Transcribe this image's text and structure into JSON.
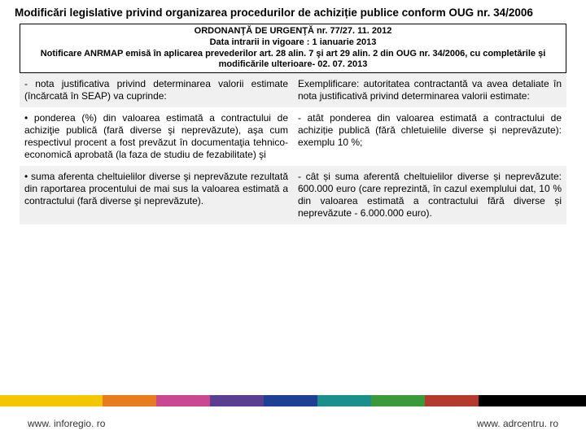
{
  "title": "Modificări legislative privind organizarea procedurilor de achiziție publice conform OUG nr. 34/2006",
  "ordonanta": {
    "line1": "ORDONANŢĂ DE URGENŢĂ nr. 77/27. 11. 2012",
    "line2": "Data intrarii in vigoare : 1 ianuarie 2013",
    "line3": "Notificare ANRMAP emisă în aplicarea prevederilor art. 28 alin. 7 şi art 29 alin. 2  din OUG nr. 34/2006, cu completările și modificările ulterioare- 02. 07. 2013"
  },
  "rows": [
    {
      "left": " - nota justificativa privind determinarea valorii estimate (încărcată în SEAP) va cuprinde:",
      "right": "Exemplificare: autoritatea contractantă va avea detaliate în nota justificativă privind determinarea valorii estimate:"
    },
    {
      "left": " •            ponderea (%) din valoarea estimată a contractului de achiziţie publică (fară diverse şi neprevăzute), aşa cum respectivul procent a fost prevăzut în documentaţia tehnico-economică aprobată (la faza de studiu de fezabilitate) şi",
      "right": " -            atât ponderea din valoarea estimată a contractului de achiziție publică (fără chletuielile diverse și neprevăzute): exemplu 10 %;"
    },
    {
      "left": " •            suma aferenta cheltuielilor diverse şi neprevăzute rezultată din raportarea procentului de mai sus la valoarea estimată a contractului (fară diverse şi neprevăzute).",
      "right": " -            cât și suma aferentă cheltuielilor diverse și neprevăzute: 600.000 euro (care reprezintă, în cazul exemplului dat, 10 % din valoarea estimată a contractului fără diverse și neprevăzute - 6.000.000 euro)."
    }
  ],
  "strip_colors": {
    "yellow": "#f3c600",
    "orange": "#e87b1e",
    "pink": "#c9488f",
    "purple": "#5a3e92",
    "blue": "#1d3f94",
    "teal": "#1a8f8c",
    "green": "#3a9a3a",
    "red": "#b43a2e",
    "black1": "#000000",
    "black2": "#000000"
  },
  "footer": {
    "left": "www. inforegio. ro",
    "right": "www. adrcentru. ro"
  }
}
